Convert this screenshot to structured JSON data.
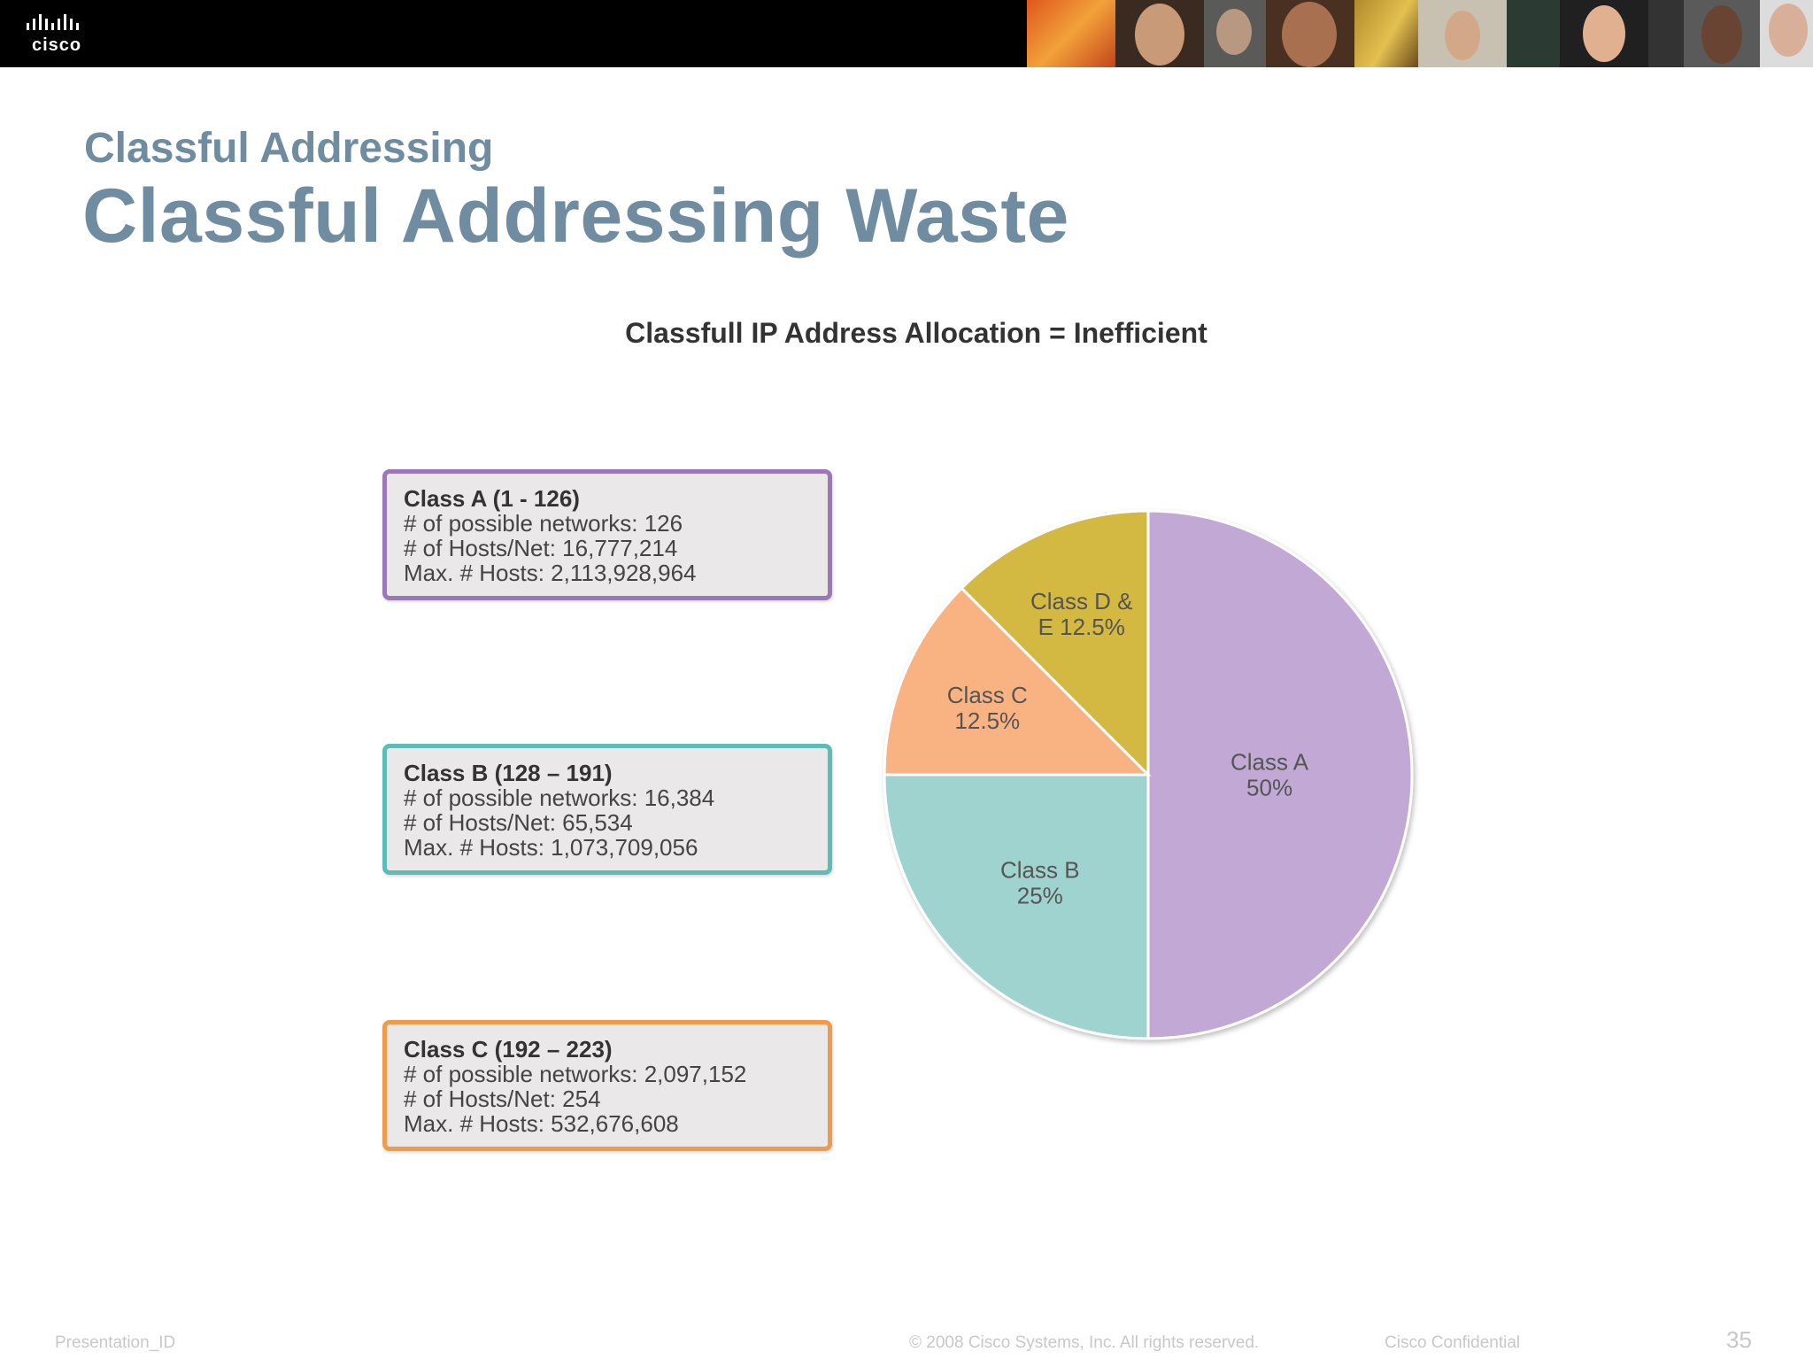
{
  "header": {
    "logo_text": "cisco"
  },
  "slide": {
    "section_title": "Classful Addressing",
    "title": "Classful Addressing Waste"
  },
  "chart_data": {
    "type": "pie",
    "title": "Classfull IP Address Allocation = Inefficient",
    "slices": [
      {
        "name": "Class A",
        "value": 50,
        "label_lines": [
          "Class A",
          "50%"
        ],
        "color": "#c2a8d4"
      },
      {
        "name": "Class B",
        "value": 25,
        "label_lines": [
          "Class B",
          "25%"
        ],
        "color": "#9fd3cf"
      },
      {
        "name": "Class C",
        "value": 12.5,
        "label_lines": [
          "Class C",
          "12.5%"
        ],
        "color": "#f9b382"
      },
      {
        "name": "Class D & E",
        "value": 12.5,
        "label_lines": [
          "Class D &",
          "E 12.5%"
        ],
        "color": "#d3b843"
      }
    ]
  },
  "class_boxes": [
    {
      "heading": "Class A (1 - 126)",
      "networks": "# of possible networks: 126",
      "hosts_per_net": "# of Hosts/Net: 16,777,214",
      "max_hosts": "Max. # Hosts: 2,113,928,964",
      "border_color": "#9d78b8"
    },
    {
      "heading": "Class B (128 – 191)",
      "networks": "# of possible networks: 16,384",
      "hosts_per_net": "# of Hosts/Net: 65,534",
      "max_hosts": "Max. # Hosts: 1,073,709,056",
      "border_color": "#5ebcb8"
    },
    {
      "heading": "Class C (192 – 223)",
      "networks": "# of possible networks: 2,097,152",
      "hosts_per_net": "# of Hosts/Net: 254",
      "max_hosts": "Max. # Hosts: 532,676,608",
      "border_color": "#f09a4c"
    }
  ],
  "footer": {
    "presentation_id": "Presentation_ID",
    "copyright": "© 2008 Cisco Systems, Inc. All rights reserved.",
    "confidential": "Cisco Confidential",
    "page_number": "35"
  }
}
